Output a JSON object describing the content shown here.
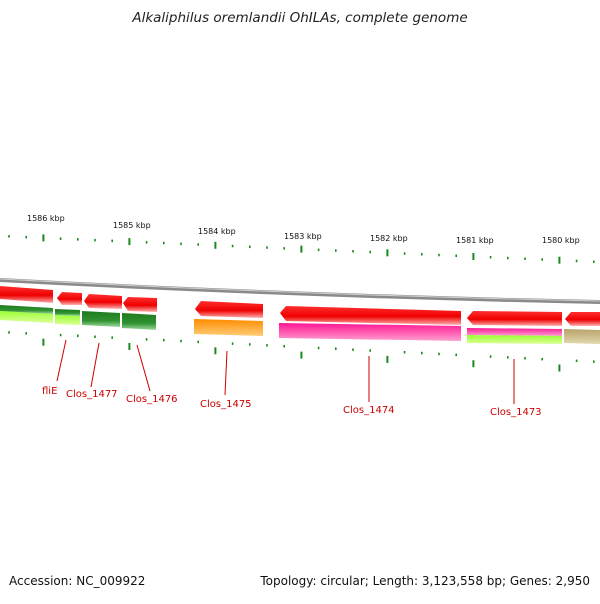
{
  "title": "Alkaliphilus oremlandii OhILAs, complete genome",
  "footer": {
    "accession": "Accession: NC_009922",
    "summary": "Topology: circular; Length: 3,123,558 bp; Genes: 2,950"
  },
  "scale": {
    "unit": "kbp",
    "labels": [
      "1586 kbp",
      "1585 kbp",
      "1584 kbp",
      "1583 kbp",
      "1582 kbp",
      "1581 kbp",
      "1580 kbp"
    ]
  },
  "genes": [
    {
      "name": "fliE",
      "color": "#ff0000",
      "strand": "reverse"
    },
    {
      "name": "Clos_1477",
      "color": "#ff0000",
      "strand": "reverse"
    },
    {
      "name": "Clos_1476",
      "color": "#ff0000",
      "strand": "reverse"
    },
    {
      "name": "Clos_1475",
      "color": "#ff0000",
      "strand": "reverse"
    },
    {
      "name": "Clos_1474",
      "color": "#ff0000",
      "strand": "reverse"
    },
    {
      "name": "Clos_1473",
      "color": "#ff0000",
      "strand": "reverse"
    }
  ],
  "colors": {
    "gene_arrow": "#ff0000",
    "label": "#cc0000",
    "tick": "#1a8a1a",
    "backbone": "#888888",
    "cog_green": "#2e8b2e",
    "cog_lime": "#aaff33",
    "cog_orange": "#ff9900",
    "cog_pink": "#ff1493",
    "cog_khaki": "#bdb07a"
  }
}
